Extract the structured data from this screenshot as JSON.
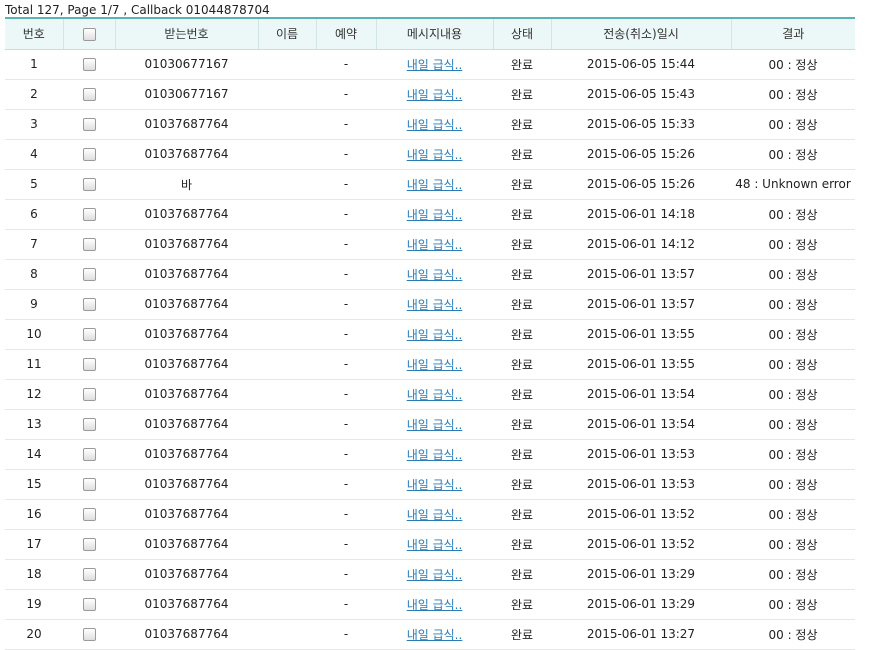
{
  "summary": "Total 127, Page 1/7 , Callback 01044878704",
  "table": {
    "headers": {
      "no": "번호",
      "receiver": "받는번호",
      "name": "이름",
      "reservation": "예약",
      "message": "메시지내용",
      "status": "상태",
      "datetime": "전송(취소)일시",
      "result": "결과"
    },
    "rows": [
      {
        "no": "1",
        "receiver": "01030677167",
        "name": "",
        "reservation": "-",
        "message": "내일 급식..",
        "status": "완료",
        "datetime": "2015-06-05 15:44",
        "result": "00 : 정상"
      },
      {
        "no": "2",
        "receiver": "01030677167",
        "name": "",
        "reservation": "-",
        "message": "내일 급식..",
        "status": "완료",
        "datetime": "2015-06-05 15:43",
        "result": "00 : 정상"
      },
      {
        "no": "3",
        "receiver": "01037687764",
        "name": "",
        "reservation": "-",
        "message": "내일 급식..",
        "status": "완료",
        "datetime": "2015-06-05 15:33",
        "result": "00 : 정상"
      },
      {
        "no": "4",
        "receiver": "01037687764",
        "name": "",
        "reservation": "-",
        "message": "내일 급식..",
        "status": "완료",
        "datetime": "2015-06-05 15:26",
        "result": "00 : 정상"
      },
      {
        "no": "5",
        "receiver": "바",
        "name": "",
        "reservation": "-",
        "message": "내일 급식..",
        "status": "완료",
        "datetime": "2015-06-05 15:26",
        "result": "48 : Unknown error"
      },
      {
        "no": "6",
        "receiver": "01037687764",
        "name": "",
        "reservation": "-",
        "message": "내일 급식..",
        "status": "완료",
        "datetime": "2015-06-01 14:18",
        "result": "00 : 정상"
      },
      {
        "no": "7",
        "receiver": "01037687764",
        "name": "",
        "reservation": "-",
        "message": "내일 급식..",
        "status": "완료",
        "datetime": "2015-06-01 14:12",
        "result": "00 : 정상"
      },
      {
        "no": "8",
        "receiver": "01037687764",
        "name": "",
        "reservation": "-",
        "message": "내일 급식..",
        "status": "완료",
        "datetime": "2015-06-01 13:57",
        "result": "00 : 정상"
      },
      {
        "no": "9",
        "receiver": "01037687764",
        "name": "",
        "reservation": "-",
        "message": "내일 급식..",
        "status": "완료",
        "datetime": "2015-06-01 13:57",
        "result": "00 : 정상"
      },
      {
        "no": "10",
        "receiver": "01037687764",
        "name": "",
        "reservation": "-",
        "message": "내일 급식..",
        "status": "완료",
        "datetime": "2015-06-01 13:55",
        "result": "00 : 정상"
      },
      {
        "no": "11",
        "receiver": "01037687764",
        "name": "",
        "reservation": "-",
        "message": "내일 급식..",
        "status": "완료",
        "datetime": "2015-06-01 13:55",
        "result": "00 : 정상"
      },
      {
        "no": "12",
        "receiver": "01037687764",
        "name": "",
        "reservation": "-",
        "message": "내일 급식..",
        "status": "완료",
        "datetime": "2015-06-01 13:54",
        "result": "00 : 정상"
      },
      {
        "no": "13",
        "receiver": "01037687764",
        "name": "",
        "reservation": "-",
        "message": "내일 급식..",
        "status": "완료",
        "datetime": "2015-06-01 13:54",
        "result": "00 : 정상"
      },
      {
        "no": "14",
        "receiver": "01037687764",
        "name": "",
        "reservation": "-",
        "message": "내일 급식..",
        "status": "완료",
        "datetime": "2015-06-01 13:53",
        "result": "00 : 정상"
      },
      {
        "no": "15",
        "receiver": "01037687764",
        "name": "",
        "reservation": "-",
        "message": "내일 급식..",
        "status": "완료",
        "datetime": "2015-06-01 13:53",
        "result": "00 : 정상"
      },
      {
        "no": "16",
        "receiver": "01037687764",
        "name": "",
        "reservation": "-",
        "message": "내일 급식..",
        "status": "완료",
        "datetime": "2015-06-01 13:52",
        "result": "00 : 정상"
      },
      {
        "no": "17",
        "receiver": "01037687764",
        "name": "",
        "reservation": "-",
        "message": "내일 급식..",
        "status": "완료",
        "datetime": "2015-06-01 13:52",
        "result": "00 : 정상"
      },
      {
        "no": "18",
        "receiver": "01037687764",
        "name": "",
        "reservation": "-",
        "message": "내일 급식..",
        "status": "완료",
        "datetime": "2015-06-01 13:29",
        "result": "00 : 정상"
      },
      {
        "no": "19",
        "receiver": "01037687764",
        "name": "",
        "reservation": "-",
        "message": "내일 급식..",
        "status": "완료",
        "datetime": "2015-06-01 13:29",
        "result": "00 : 정상"
      },
      {
        "no": "20",
        "receiver": "01037687764",
        "name": "",
        "reservation": "-",
        "message": "내일 급식..",
        "status": "완료",
        "datetime": "2015-06-01 13:27",
        "result": "00 : 정상"
      }
    ]
  },
  "colors": {
    "header_bg": "#ebf8f7",
    "header_top_border": "#5bb4b4",
    "link": "#2b7bb7",
    "row_border": "#e7e7e7"
  }
}
